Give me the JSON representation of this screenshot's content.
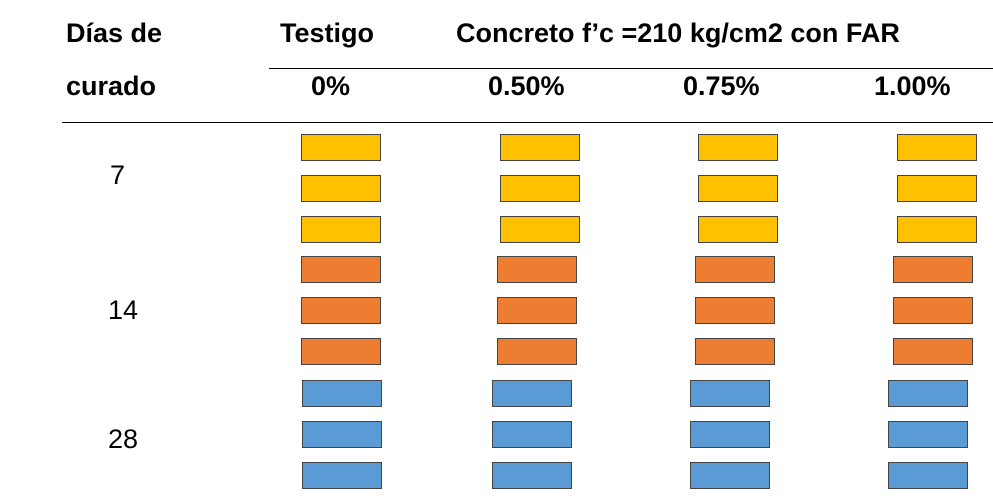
{
  "table": {
    "header": {
      "days_line1": "Días de",
      "days_line2": "curado",
      "control_label": "Testigo",
      "group_label": "Concreto f’c =210 kg/cm2 con FAR",
      "pct_control": "0%",
      "pct_1": "0.50%",
      "pct_2": "0.75%",
      "pct_3": "1.00%"
    },
    "rows": [
      {
        "days": "7",
        "color": "#FFC000",
        "specimens_per_column": 3
      },
      {
        "days": "14",
        "color": "#ED7D31",
        "specimens_per_column": 3
      },
      {
        "days": "28",
        "color": "#5B9BD5",
        "specimens_per_column": 3
      }
    ]
  }
}
